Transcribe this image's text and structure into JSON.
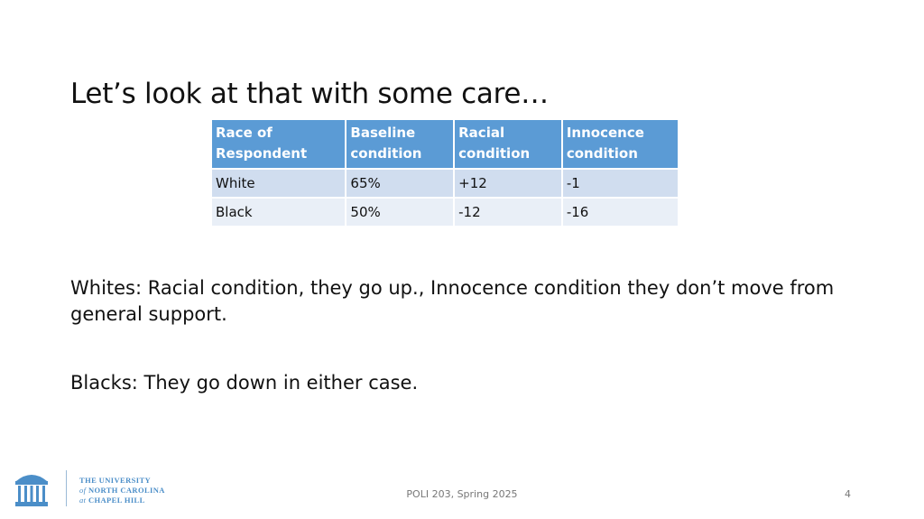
{
  "slide": {
    "title": "Let’s look at that with some care…",
    "paragraphs": [
      "Whites: Racial condition, they go up., Innocence condition they don’t move from general support.",
      "Blacks: They go down in either case."
    ]
  },
  "table": {
    "headers": [
      [
        "Race of",
        "Respondent"
      ],
      [
        "Baseline",
        "condition"
      ],
      [
        "Racial",
        "condition"
      ],
      [
        "Innocence",
        "condition"
      ]
    ],
    "rows": [
      [
        "White",
        "65%",
        "+12",
        "-1"
      ],
      [
        "Black",
        "50%",
        "-12",
        "-16"
      ]
    ]
  },
  "footer": {
    "course": "POLI 203, Spring 2025",
    "page_number": "4"
  },
  "logo": {
    "line1": "THE UNIVERSITY",
    "line2_prefix": "of",
    "line2": "NORTH CAROLINA",
    "line3_prefix": "at",
    "line3": "CHAPEL HILL"
  },
  "colors": {
    "header_fill": "#5b9bd5",
    "row_odd": "#d0ddef",
    "row_even": "#e9eff7",
    "logo_blue": "#4b8ec8"
  }
}
